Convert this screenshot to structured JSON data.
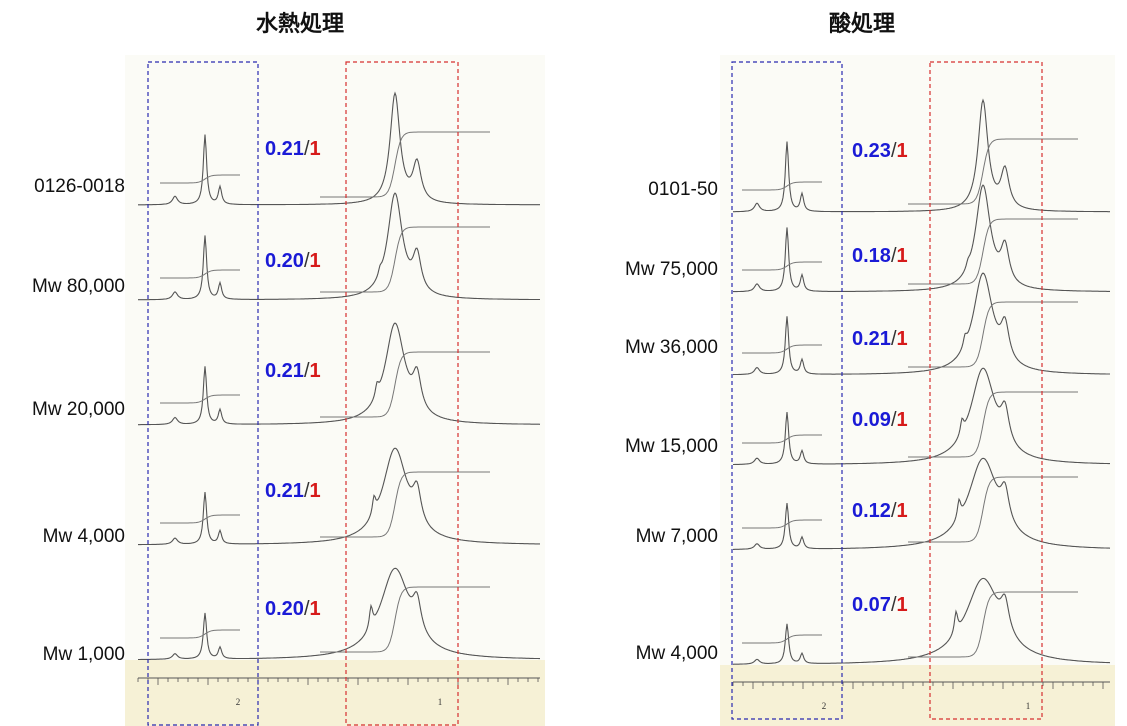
{
  "panels": [
    {
      "title": "水熱処理",
      "samples": [
        {
          "label": "0126-0018",
          "ratio": [
            "0.21",
            "/",
            "1"
          ]
        },
        {
          "label": "Mw 80,000",
          "ratio": [
            "0.20",
            "/",
            "1"
          ]
        },
        {
          "label": "Mw 20,000",
          "ratio": [
            "0.21",
            "/",
            "1"
          ]
        },
        {
          "label": "Mw 4,000",
          "ratio": [
            "0.21",
            "/",
            "1"
          ]
        },
        {
          "label": "Mw 1,000",
          "ratio": [
            "0.20",
            "/",
            "1"
          ]
        }
      ],
      "axis_labels": [
        "2",
        "1"
      ]
    },
    {
      "title": "酸処理",
      "samples": [
        {
          "label": "0101-50",
          "ratio": [
            "0.23",
            "/",
            "1"
          ]
        },
        {
          "label": "Mw 75,000",
          "ratio": [
            "0.18",
            "/",
            "1"
          ]
        },
        {
          "label": "Mw 36,000",
          "ratio": [
            "0.21",
            "/",
            "1"
          ]
        },
        {
          "label": "Mw 15,000",
          "ratio": [
            "0.09",
            "/",
            "1"
          ]
        },
        {
          "label": "Mw 7,000",
          "ratio": [
            "0.12",
            "/",
            "1"
          ]
        },
        {
          "label": "Mw 4,000",
          "ratio": [
            "0.07",
            "/",
            "1"
          ]
        }
      ],
      "axis_labels": [
        "2",
        "1"
      ]
    }
  ]
}
